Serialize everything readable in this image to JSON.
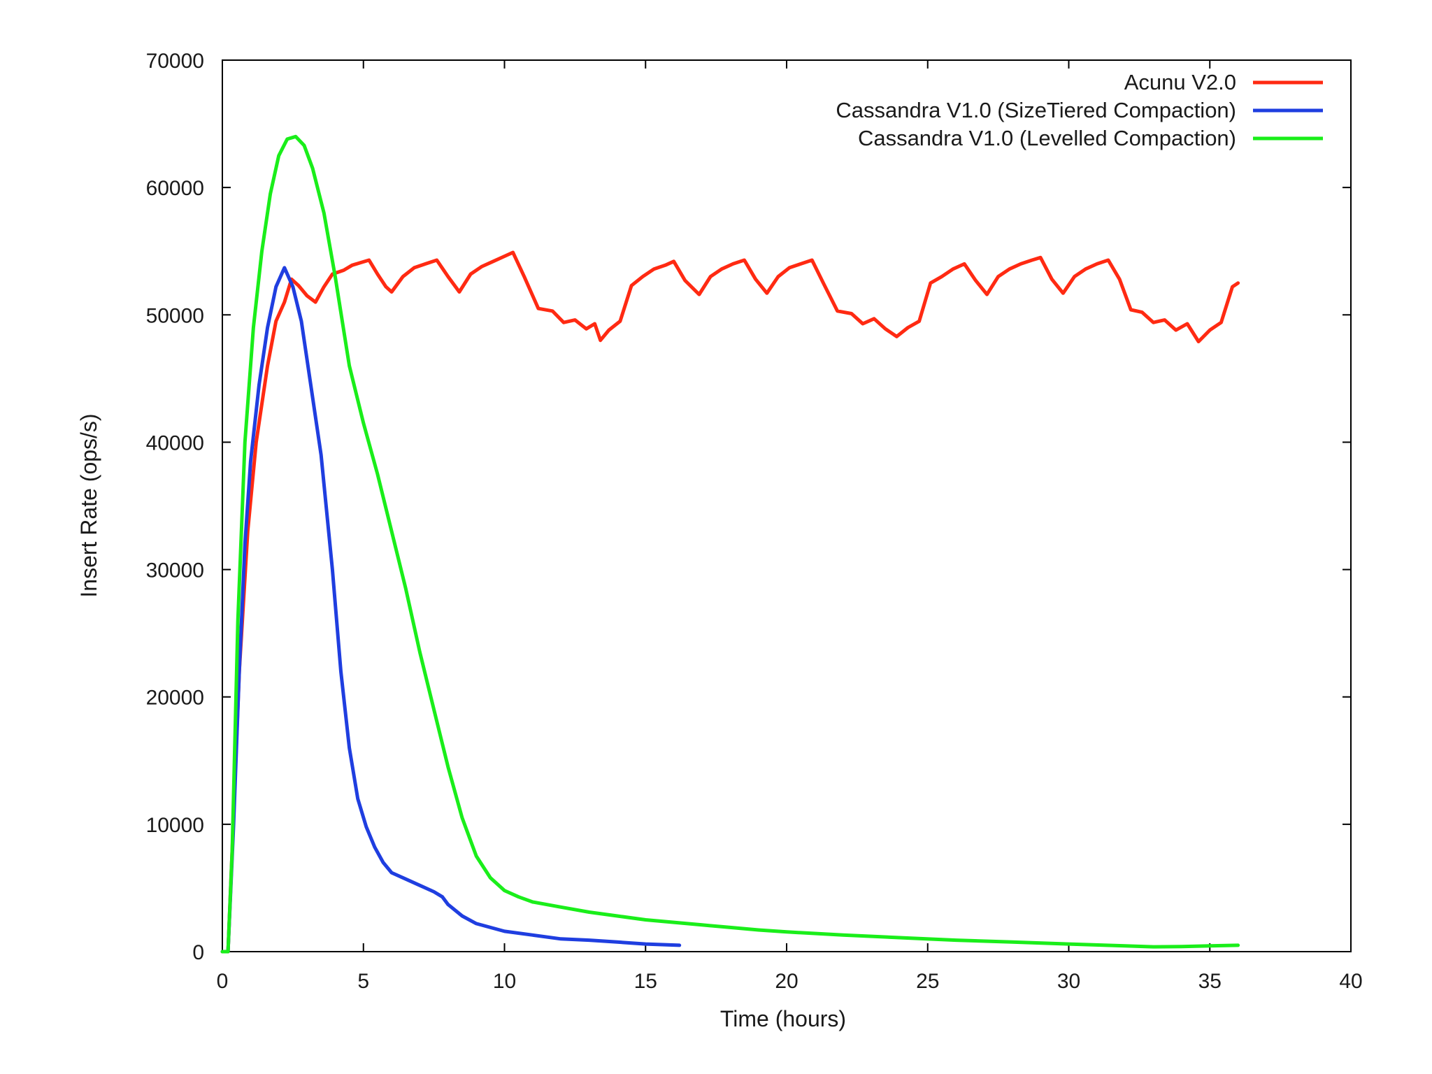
{
  "chart_data": {
    "type": "line",
    "xlabel": "Time (hours)",
    "ylabel": "Insert Rate (ops/s)",
    "xlim": [
      0,
      40
    ],
    "ylim": [
      0,
      70000
    ],
    "xticks": [
      0,
      5,
      10,
      15,
      20,
      25,
      30,
      35,
      40
    ],
    "yticks": [
      0,
      10000,
      20000,
      30000,
      40000,
      50000,
      60000,
      70000
    ],
    "grid": false,
    "legend_position": "top-right",
    "series": [
      {
        "name": "Acunu V2.0",
        "color": "#ff2a12",
        "points": [
          [
            0,
            0
          ],
          [
            0.2,
            0
          ],
          [
            0.35,
            8000
          ],
          [
            0.6,
            22000
          ],
          [
            0.9,
            33000
          ],
          [
            1.2,
            40000
          ],
          [
            1.6,
            46000
          ],
          [
            1.9,
            49500
          ],
          [
            2.2,
            51000
          ],
          [
            2.45,
            52800
          ],
          [
            2.7,
            52300
          ],
          [
            3.0,
            51500
          ],
          [
            3.3,
            51000
          ],
          [
            3.6,
            52200
          ],
          [
            3.9,
            53200
          ],
          [
            4.3,
            53500
          ],
          [
            4.6,
            53900
          ],
          [
            4.9,
            54100
          ],
          [
            5.2,
            54300
          ],
          [
            5.5,
            53200
          ],
          [
            5.8,
            52200
          ],
          [
            6.0,
            51800
          ],
          [
            6.4,
            53000
          ],
          [
            6.8,
            53700
          ],
          [
            7.2,
            54000
          ],
          [
            7.6,
            54300
          ],
          [
            8.0,
            53000
          ],
          [
            8.4,
            51800
          ],
          [
            8.8,
            53200
          ],
          [
            9.2,
            53800
          ],
          [
            9.6,
            54200
          ],
          [
            10.0,
            54600
          ],
          [
            10.3,
            54900
          ],
          [
            10.7,
            53000
          ],
          [
            11.2,
            50500
          ],
          [
            11.7,
            50300
          ],
          [
            12.1,
            49400
          ],
          [
            12.5,
            49600
          ],
          [
            12.9,
            48900
          ],
          [
            13.2,
            49300
          ],
          [
            13.4,
            48000
          ],
          [
            13.7,
            48800
          ],
          [
            14.1,
            49500
          ],
          [
            14.5,
            52300
          ],
          [
            14.9,
            53000
          ],
          [
            15.3,
            53600
          ],
          [
            15.7,
            53900
          ],
          [
            16.0,
            54200
          ],
          [
            16.4,
            52700
          ],
          [
            16.9,
            51600
          ],
          [
            17.3,
            53000
          ],
          [
            17.7,
            53600
          ],
          [
            18.1,
            54000
          ],
          [
            18.5,
            54300
          ],
          [
            18.9,
            52800
          ],
          [
            19.3,
            51700
          ],
          [
            19.7,
            53000
          ],
          [
            20.1,
            53700
          ],
          [
            20.5,
            54000
          ],
          [
            20.9,
            54300
          ],
          [
            21.3,
            52500
          ],
          [
            21.8,
            50300
          ],
          [
            22.3,
            50100
          ],
          [
            22.7,
            49300
          ],
          [
            23.1,
            49700
          ],
          [
            23.5,
            48900
          ],
          [
            23.9,
            48300
          ],
          [
            24.3,
            49000
          ],
          [
            24.7,
            49500
          ],
          [
            25.1,
            52500
          ],
          [
            25.5,
            53000
          ],
          [
            25.9,
            53600
          ],
          [
            26.3,
            54000
          ],
          [
            26.7,
            52700
          ],
          [
            27.1,
            51600
          ],
          [
            27.5,
            53000
          ],
          [
            27.9,
            53600
          ],
          [
            28.3,
            54000
          ],
          [
            28.7,
            54300
          ],
          [
            29.0,
            54500
          ],
          [
            29.4,
            52800
          ],
          [
            29.8,
            51700
          ],
          [
            30.2,
            53000
          ],
          [
            30.6,
            53600
          ],
          [
            31.0,
            54000
          ],
          [
            31.4,
            54300
          ],
          [
            31.8,
            52800
          ],
          [
            32.2,
            50400
          ],
          [
            32.6,
            50200
          ],
          [
            33.0,
            49400
          ],
          [
            33.4,
            49600
          ],
          [
            33.8,
            48800
          ],
          [
            34.2,
            49300
          ],
          [
            34.6,
            47900
          ],
          [
            35.0,
            48800
          ],
          [
            35.4,
            49400
          ],
          [
            35.8,
            52200
          ],
          [
            36.0,
            52500
          ]
        ]
      },
      {
        "name": "Cassandra V1.0 (SizeTiered Compaction)",
        "color": "#1f3ee0",
        "points": [
          [
            0,
            0
          ],
          [
            0.2,
            0
          ],
          [
            0.4,
            10000
          ],
          [
            0.6,
            22000
          ],
          [
            0.8,
            32000
          ],
          [
            1.0,
            38500
          ],
          [
            1.3,
            44500
          ],
          [
            1.6,
            49000
          ],
          [
            1.9,
            52200
          ],
          [
            2.2,
            53700
          ],
          [
            2.5,
            52200
          ],
          [
            2.8,
            49500
          ],
          [
            3.1,
            45000
          ],
          [
            3.5,
            39000
          ],
          [
            3.9,
            30000
          ],
          [
            4.2,
            22000
          ],
          [
            4.5,
            16000
          ],
          [
            4.8,
            12000
          ],
          [
            5.1,
            9800
          ],
          [
            5.4,
            8200
          ],
          [
            5.7,
            7000
          ],
          [
            6.0,
            6200
          ],
          [
            6.5,
            5700
          ],
          [
            7.0,
            5200
          ],
          [
            7.5,
            4700
          ],
          [
            7.8,
            4300
          ],
          [
            8.0,
            3700
          ],
          [
            8.5,
            2800
          ],
          [
            9.0,
            2200
          ],
          [
            10.0,
            1600
          ],
          [
            11.0,
            1300
          ],
          [
            12.0,
            1000
          ],
          [
            13.0,
            900
          ],
          [
            14.0,
            750
          ],
          [
            15.0,
            600
          ],
          [
            16.2,
            500
          ]
        ]
      },
      {
        "name": "Cassandra V1.0 (Levelled Compaction)",
        "color": "#1aee1a",
        "points": [
          [
            0,
            0
          ],
          [
            0.2,
            0
          ],
          [
            0.35,
            8000
          ],
          [
            0.55,
            26000
          ],
          [
            0.8,
            40000
          ],
          [
            1.1,
            49000
          ],
          [
            1.4,
            55000
          ],
          [
            1.7,
            59500
          ],
          [
            2.0,
            62500
          ],
          [
            2.3,
            63800
          ],
          [
            2.6,
            64000
          ],
          [
            2.9,
            63300
          ],
          [
            3.2,
            61500
          ],
          [
            3.6,
            58000
          ],
          [
            4.0,
            53000
          ],
          [
            4.5,
            46000
          ],
          [
            5.0,
            41500
          ],
          [
            5.5,
            37500
          ],
          [
            6.0,
            33000
          ],
          [
            6.5,
            28500
          ],
          [
            7.0,
            23500
          ],
          [
            7.5,
            19000
          ],
          [
            8.0,
            14500
          ],
          [
            8.5,
            10500
          ],
          [
            9.0,
            7500
          ],
          [
            9.5,
            5800
          ],
          [
            10.0,
            4800
          ],
          [
            10.5,
            4300
          ],
          [
            11.0,
            3900
          ],
          [
            12.0,
            3500
          ],
          [
            13.0,
            3100
          ],
          [
            14.0,
            2800
          ],
          [
            15.0,
            2500
          ],
          [
            16.0,
            2300
          ],
          [
            17.0,
            2100
          ],
          [
            18.0,
            1900
          ],
          [
            19.0,
            1700
          ],
          [
            20.0,
            1550
          ],
          [
            22.0,
            1300
          ],
          [
            24.0,
            1100
          ],
          [
            26.0,
            900
          ],
          [
            28.0,
            750
          ],
          [
            30.0,
            600
          ],
          [
            32.0,
            450
          ],
          [
            33.0,
            380
          ],
          [
            34.0,
            400
          ],
          [
            35.0,
            450
          ],
          [
            36.0,
            500
          ]
        ]
      }
    ]
  }
}
